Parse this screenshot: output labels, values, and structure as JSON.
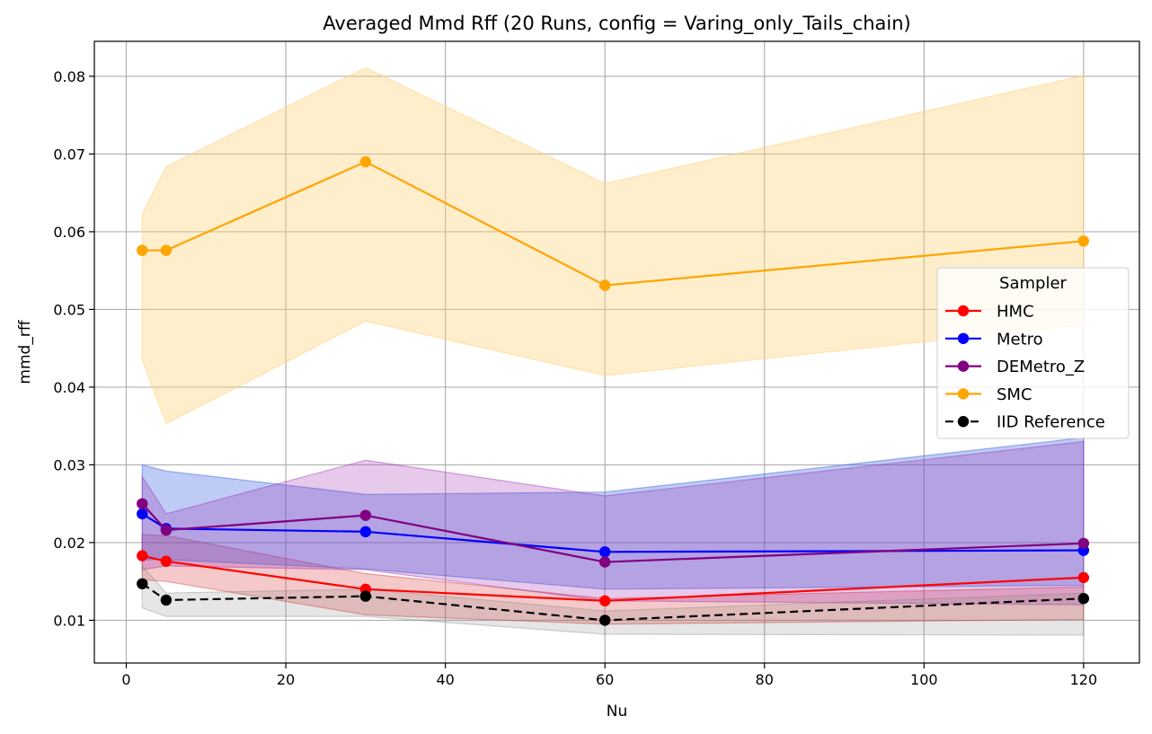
{
  "chart_data": {
    "type": "line",
    "title": "Averaged Mmd Rff (20 Runs, config = Varing_only_Tails_chain)",
    "xlabel": "Nu",
    "ylabel": "mmd_rff",
    "xlim": [
      -4,
      127
    ],
    "ylim": [
      0.0045,
      0.0845
    ],
    "xticks": [
      0,
      20,
      40,
      60,
      80,
      100,
      120
    ],
    "xtick_labels": [
      "0",
      "20",
      "40",
      "60",
      "80",
      "100",
      "120"
    ],
    "yticks": [
      0.01,
      0.02,
      0.03,
      0.04,
      0.05,
      0.06,
      0.07,
      0.08
    ],
    "ytick_labels": [
      "0.01",
      "0.02",
      "0.03",
      "0.04",
      "0.05",
      "0.06",
      "0.07",
      "0.08"
    ],
    "grid": true,
    "legend": {
      "title": "Sampler",
      "placement": "center-right"
    },
    "x": [
      2,
      5,
      30,
      60,
      120
    ],
    "series": [
      {
        "name": "HMC",
        "color": "#ff0000",
        "dashed": false,
        "values": [
          0.0183,
          0.0176,
          0.014,
          0.0125,
          0.0155
        ],
        "lower": [
          0.0152,
          0.015,
          0.0107,
          0.0095,
          0.0101
        ],
        "upper": [
          0.021,
          0.0209,
          0.016,
          0.0128,
          0.0143
        ],
        "band_color": "#d62728",
        "band_opacity": 0.25
      },
      {
        "name": "Metro",
        "color": "#0000ff",
        "dashed": false,
        "values": [
          0.0237,
          0.0218,
          0.0214,
          0.0188,
          0.019
        ],
        "lower": [
          0.0178,
          0.0178,
          0.0166,
          0.014,
          0.0145
        ],
        "upper": [
          0.03,
          0.0292,
          0.0262,
          0.0265,
          0.0335
        ],
        "band_color": "#4169e1",
        "band_opacity": 0.35
      },
      {
        "name": "DEMetro_Z",
        "color": "#800080",
        "dashed": false,
        "values": [
          0.025,
          0.0216,
          0.0235,
          0.0175,
          0.0199
        ],
        "lower": [
          0.0165,
          0.017,
          0.0165,
          0.0125,
          0.012
        ],
        "upper": [
          0.0285,
          0.0237,
          0.0306,
          0.026,
          0.033
        ],
        "band_color": "#9c27b0",
        "band_opacity": 0.25
      },
      {
        "name": "SMC",
        "color": "#ffa500",
        "dashed": false,
        "values": [
          0.0576,
          0.0576,
          0.069,
          0.0531,
          0.0588
        ],
        "lower": [
          0.0435,
          0.0353,
          0.0485,
          0.0415,
          0.048
        ],
        "upper": [
          0.0623,
          0.0684,
          0.0811,
          0.0662,
          0.0801
        ],
        "band_color": "#ffd27a",
        "band_opacity": 0.38
      },
      {
        "name": "IID Reference",
        "color": "#000000",
        "dashed": true,
        "values": [
          0.0147,
          0.0126,
          0.0131,
          0.01,
          0.0128
        ],
        "lower": [
          0.0116,
          0.0105,
          0.0105,
          0.0082,
          0.0081
        ],
        "upper": [
          0.017,
          0.0135,
          0.014,
          0.0112,
          0.0135
        ],
        "band_color": "#808080",
        "band_opacity": 0.2
      }
    ]
  }
}
